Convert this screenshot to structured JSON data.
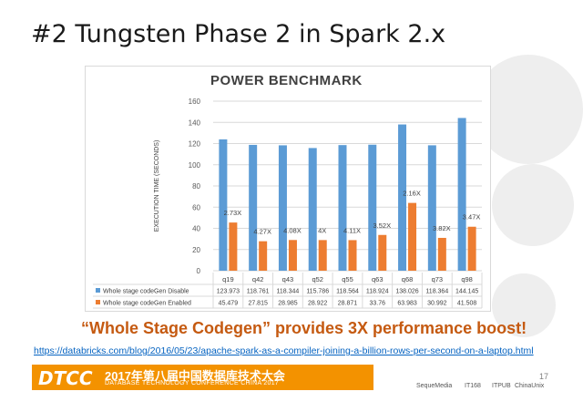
{
  "slide": {
    "title": "#2 Tungsten Phase 2 in Spark 2.x",
    "tagline": "“Whole Stage Codegen” provides 3X performance boost!",
    "url": "https://databricks.com/blog/2016/05/23/apache-spark-as-a-compiler-joining-a-billion-rows-per-second-on-a-laptop.html",
    "page_number": "17"
  },
  "footer": {
    "logo": "DTCC",
    "title": "2017年第八届中国数据库技术大会",
    "subtitle": "DATABASE TECHNOLOGY CONFERENCE CHINA 2017",
    "sponsors": [
      "SequeMedia",
      "IT168",
      "ITPUB",
      "ChinaUnix"
    ]
  },
  "colors": {
    "disabled": "#5b9bd5",
    "enabled": "#ed7d31",
    "accent": "#f39200"
  },
  "chart_data": {
    "type": "bar",
    "title": "POWER BENCHMARK",
    "ylabel": "EXECUTION TIME (SECONDS)",
    "xlabel": "",
    "ylim": [
      0,
      160
    ],
    "yticks": [
      "0",
      "20",
      "40",
      "60",
      "80",
      "100",
      "120",
      "140",
      "160"
    ],
    "grid": true,
    "categories": [
      "q19",
      "q42",
      "q43",
      "q52",
      "q55",
      "q63",
      "q68",
      "q73",
      "q98"
    ],
    "series": [
      {
        "name": "Whole stage codeGen Disable",
        "values": [
          123.973,
          118.761,
          118.344,
          115.786,
          118.564,
          118.924,
          138.026,
          118.364,
          144.145
        ],
        "value_labels": [
          "123.973",
          "118.761",
          "118.344",
          "115.786",
          "118.564",
          "118.924",
          "138.026",
          "118.364",
          "144.145"
        ]
      },
      {
        "name": "Whole stage codeGen Enabled",
        "values": [
          45.479,
          27.815,
          28.985,
          28.922,
          28.871,
          33.76,
          63.983,
          30.992,
          41.508
        ],
        "value_labels": [
          "45.479",
          "27.815",
          "28.985",
          "28.922",
          "28.871",
          "33.76",
          "63.983",
          "30.992",
          "41.508"
        ]
      }
    ],
    "speedups": [
      "2.73X",
      "4.27X",
      "4.08X",
      "4X",
      "4.11X",
      "3.52X",
      "2.16X",
      "3.82X",
      "3.47X"
    ],
    "legend": "data-table-below"
  }
}
